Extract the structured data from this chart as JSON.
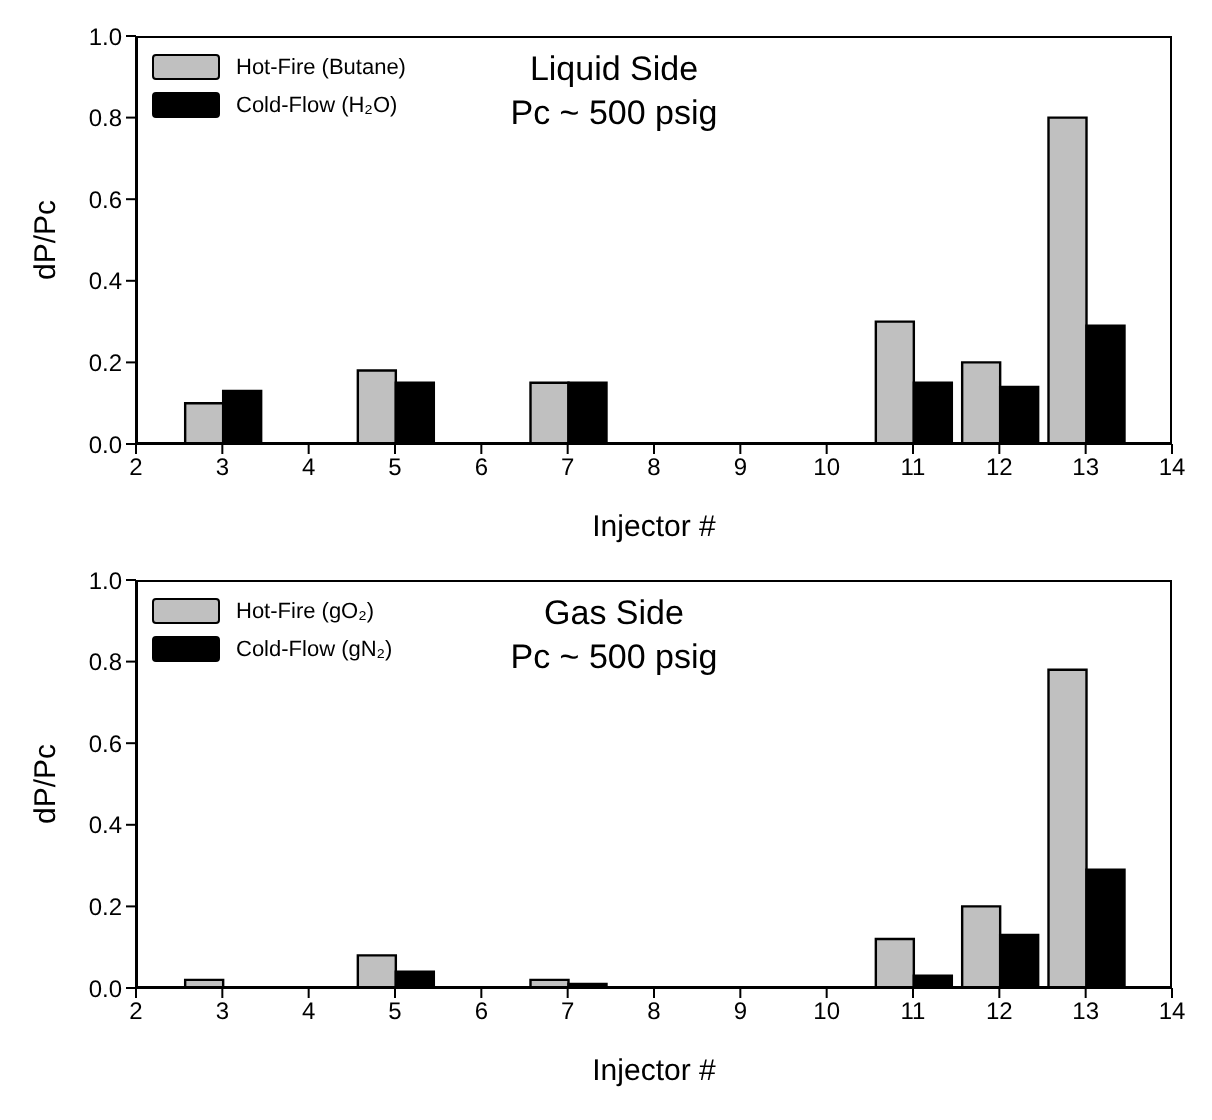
{
  "chart_data": [
    {
      "type": "bar",
      "title": "Liquid Side",
      "subtitle": "Pc ~ 500 psig",
      "xlabel": "Injector #",
      "ylabel": "dP/Pc",
      "x": [
        3,
        5,
        7,
        11,
        12,
        13
      ],
      "series": [
        {
          "name": "Hot-Fire (Butane)",
          "color": "#c0c0c0",
          "values": [
            0.1,
            0.18,
            0.15,
            0.3,
            0.2,
            0.8
          ]
        },
        {
          "name": "Cold-Flow (H₂O)",
          "color": "#000000",
          "values": [
            0.13,
            0.15,
            0.15,
            0.15,
            0.14,
            0.29
          ]
        }
      ],
      "xlim": [
        2,
        14
      ],
      "xticks": [
        2,
        3,
        4,
        5,
        6,
        7,
        8,
        9,
        10,
        11,
        12,
        13,
        14
      ],
      "ylim": [
        0,
        1
      ],
      "yticks": [
        {
          "value": 0,
          "label": "0.0"
        },
        {
          "value": 0.2,
          "label": "0.2"
        },
        {
          "value": 0.4,
          "label": "0.4"
        },
        {
          "value": 0.6,
          "label": "0.6"
        },
        {
          "value": 0.8,
          "label": "0.8"
        },
        {
          "value": 1,
          "label": "1.0"
        }
      ],
      "legend": "top left",
      "grid": false
    },
    {
      "type": "bar",
      "title": "Gas Side",
      "subtitle": "Pc ~ 500 psig",
      "xlabel": "Injector #",
      "ylabel": "dP/Pc",
      "x": [
        3,
        5,
        7,
        11,
        12,
        13
      ],
      "series": [
        {
          "name": "Hot-Fire (gO₂)",
          "color": "#c0c0c0",
          "values": [
            0.02,
            0.08,
            0.02,
            0.12,
            0.2,
            0.78
          ]
        },
        {
          "name": "Cold-Flow (gN₂)",
          "color": "#000000",
          "values": [
            null,
            0.04,
            0.01,
            0.03,
            0.13,
            0.29
          ]
        }
      ],
      "xlim": [
        2,
        14
      ],
      "xticks": [
        2,
        3,
        4,
        5,
        6,
        7,
        8,
        9,
        10,
        11,
        12,
        13,
        14
      ],
      "ylim": [
        0,
        1
      ],
      "yticks": [
        {
          "value": 0,
          "label": "0.0"
        },
        {
          "value": 0.2,
          "label": "0.2"
        },
        {
          "value": 0.4,
          "label": "0.4"
        },
        {
          "value": 0.6,
          "label": "0.6"
        },
        {
          "value": 0.8,
          "label": "0.8"
        },
        {
          "value": 1,
          "label": "1.0"
        }
      ],
      "legend": "top left",
      "grid": false
    }
  ]
}
